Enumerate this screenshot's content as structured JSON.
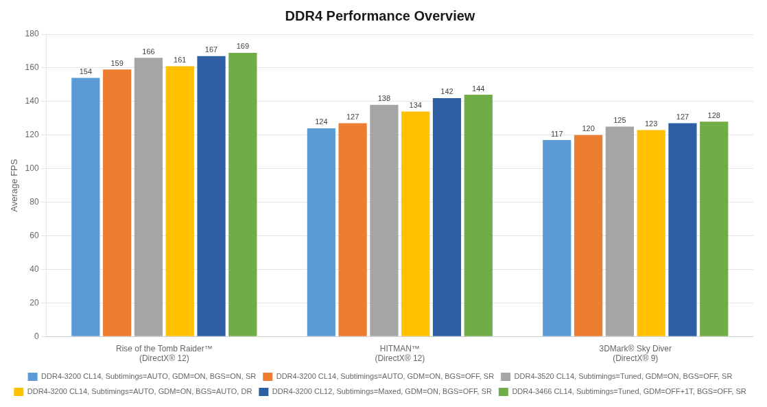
{
  "chart_data": {
    "type": "bar",
    "title": "DDR4 Performance Overview",
    "y_label": "Average FPS",
    "categories": [
      "Rise of the Tomb Raider™\n(DirectX® 12)",
      "HITMAN™\n(DirectX® 12)",
      "3DMark® Sky Diver\n(DirectX® 9)"
    ],
    "series": [
      {
        "name": "DDR4-3200 CL14, Subtimings=AUTO, GDM=ON, BGS=ON, SR",
        "color": "#5B9BD5",
        "values": [
          154,
          124,
          117
        ]
      },
      {
        "name": "DDR4-3200 CL14, Subtimings=AUTO, GDM=ON, BGS=OFF, SR",
        "color": "#ED7D31",
        "values": [
          159,
          127,
          120
        ]
      },
      {
        "name": "DDR4-3520 CL14, Subtimings=Tuned, GDM=ON, BGS=OFF, SR",
        "color": "#A5A5A5",
        "values": [
          166,
          138,
          125
        ]
      },
      {
        "name": "DDR4-3200 CL14, Subtimings=AUTO, GDM=ON, BGS=AUTO, DR",
        "color": "#FFC000",
        "values": [
          161,
          134,
          123
        ]
      },
      {
        "name": "DDR4-3200 CL12, Subtimings=Maxed, GDM=ON, BGS=OFF, SR",
        "color": "#2E5FA3",
        "values": [
          167,
          142,
          127
        ]
      },
      {
        "name": "DDR4-3466 CL14, Subtimings=Tuned, GDM=OFF+1T, BGS=OFF, SR",
        "color": "#70AD47",
        "values": [
          169,
          144,
          128
        ]
      }
    ],
    "ylim": [
      0,
      180
    ],
    "yticks": [
      0,
      20,
      40,
      60,
      80,
      100,
      120,
      140,
      160,
      180
    ],
    "grid": true,
    "legend": "bottom",
    "data_labels": true
  }
}
